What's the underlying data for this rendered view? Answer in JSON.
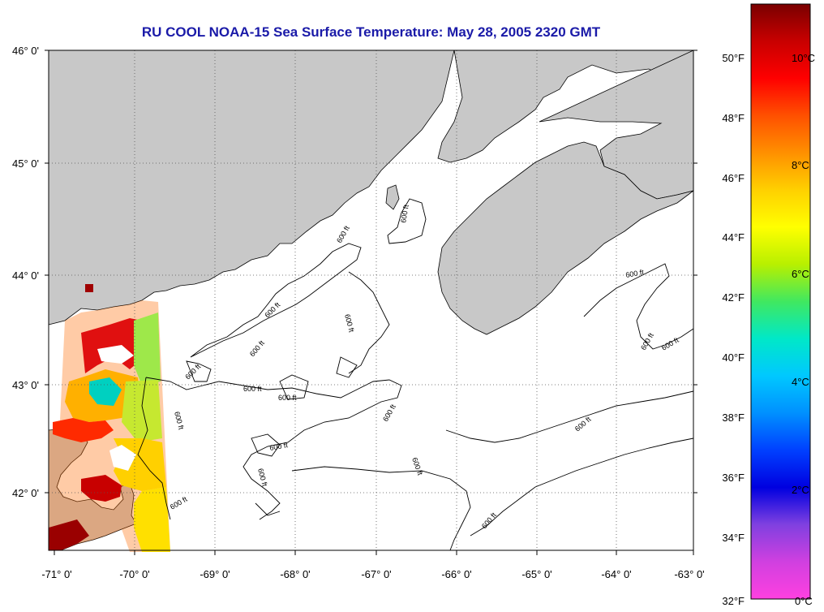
{
  "title": "RU COOL  NOAA-15  Sea Surface Temperature:  May 28, 2005 2320 GMT",
  "lat_labels": [
    "46° 0'",
    "45° 0'",
    "44° 0'",
    "43° 0'",
    "42° 0'"
  ],
  "lon_labels": [
    "-71° 0'",
    "-70° 0'",
    "-69° 0'",
    "-68° 0'",
    "-67° 0'",
    "-66° 0'",
    "-65° 0'",
    "-64° 0'",
    "-63° 0'"
  ],
  "contour_label": "600 ft",
  "colorbar": {
    "fahrenheit_labels": [
      "50°F",
      "48°F",
      "46°F",
      "44°F",
      "42°F",
      "40°F",
      "38°F",
      "36°F",
      "34°F",
      "32°F"
    ],
    "celsius_labels": [
      "10°C",
      "8°C",
      "6°C",
      "4°C",
      "2°C",
      "0°C"
    ],
    "colors": [
      "#7a0000",
      "#c80000",
      "#ff0000",
      "#ff5000",
      "#ff9000",
      "#ffd000",
      "#ffff00",
      "#b8f000",
      "#40e860",
      "#00e8c8",
      "#00c8ff",
      "#0090ff",
      "#0040ff",
      "#0000e0",
      "#8040e0",
      "#d040e0",
      "#ff40e0"
    ]
  },
  "colors": {
    "land": "#c8c8c8",
    "ocean": "#ffffff",
    "title": "#1a1aa8"
  }
}
